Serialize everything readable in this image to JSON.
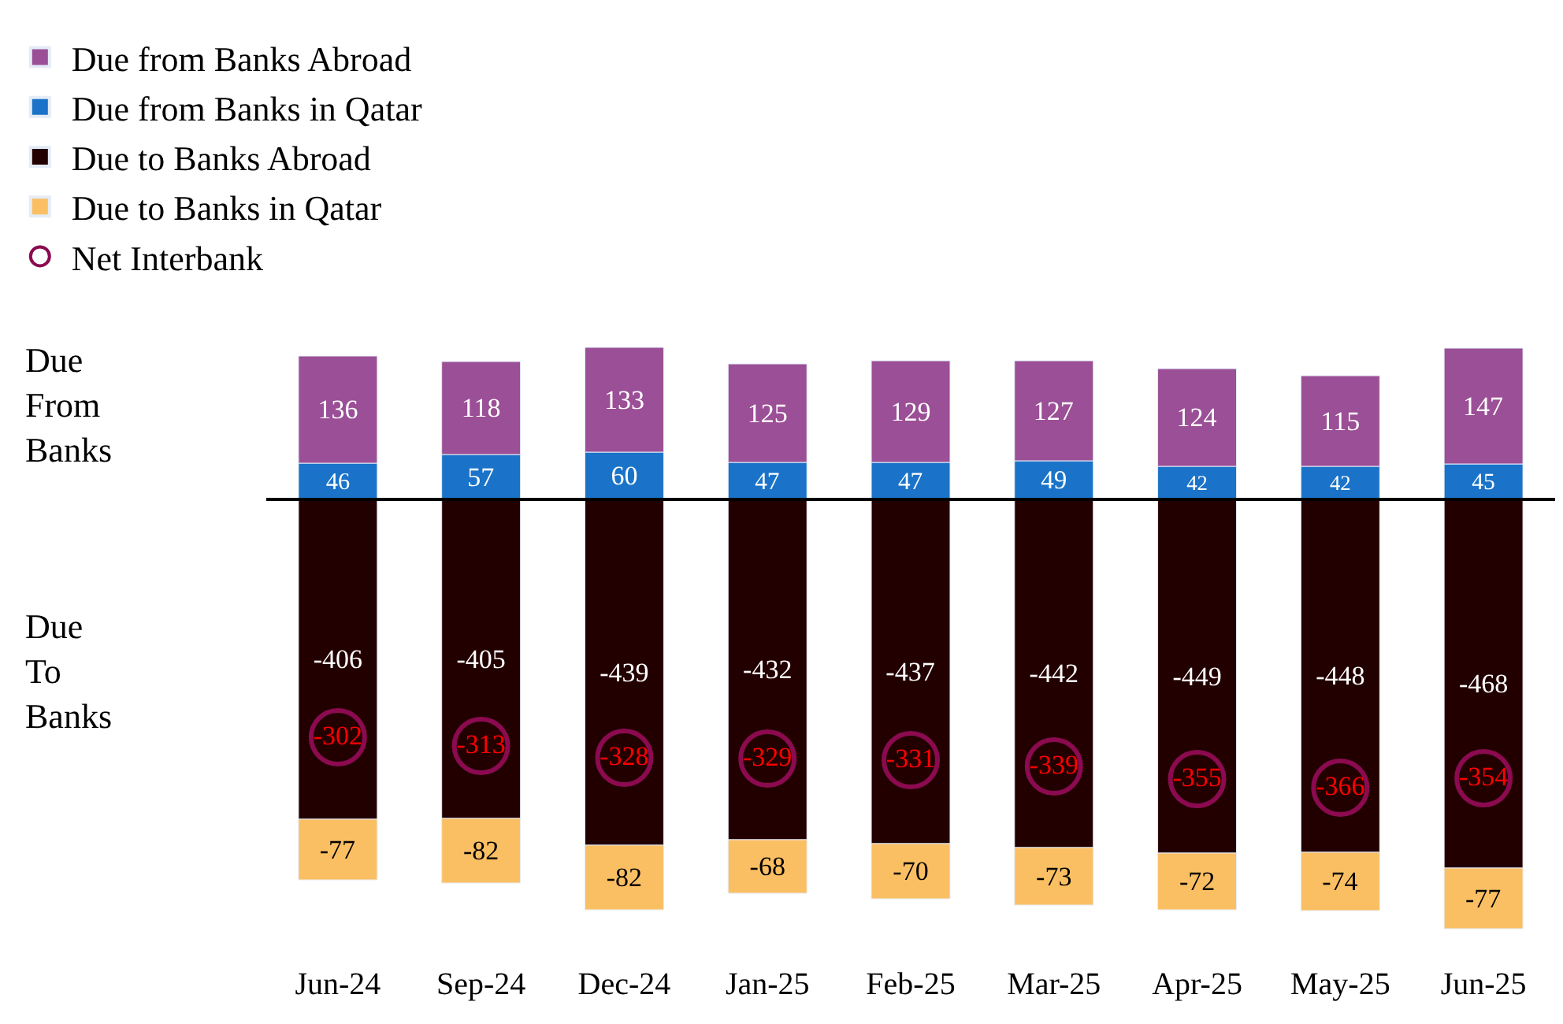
{
  "chart_data": {
    "type": "bar",
    "stacked": true,
    "categories": [
      "Jun-24",
      "Sep-24",
      "Dec-24",
      "Jan-25",
      "Feb-25",
      "Mar-25",
      "Apr-25",
      "May-25",
      "Jun-25"
    ],
    "series": [
      {
        "name": "Due from Banks in Qatar",
        "color": "#1a73c8",
        "values": [
          46,
          57,
          60,
          47,
          47,
          49,
          42,
          42,
          45
        ]
      },
      {
        "name": "Due from Banks Abroad",
        "color": "#9b4f96",
        "values": [
          136,
          118,
          133,
          125,
          129,
          127,
          124,
          115,
          147
        ]
      },
      {
        "name": "Due to Banks Abroad",
        "color": "#230000",
        "values": [
          -406,
          -405,
          -439,
          -432,
          -437,
          -442,
          -449,
          -448,
          -468
        ]
      },
      {
        "name": "Due to Banks in Qatar",
        "color": "#fbbf63",
        "values": [
          -77,
          -82,
          -82,
          -68,
          -70,
          -73,
          -72,
          -74,
          -77
        ]
      },
      {
        "name": "Net Interbank",
        "type": "scatter",
        "marker": "circle",
        "color": "#8b0a50",
        "values": [
          -302,
          -313,
          -328,
          -329,
          -331,
          -339,
          -355,
          -366,
          -354
        ]
      }
    ],
    "data_labels": true,
    "tick_labels": "x",
    "legend": "top left",
    "ref_lines": [
      {
        "axis": "y",
        "value": 0,
        "color": "#000000"
      }
    ],
    "annotations": [
      "Due\nFrom\nBanks",
      "Due\nTo\nBanks"
    ]
  }
}
